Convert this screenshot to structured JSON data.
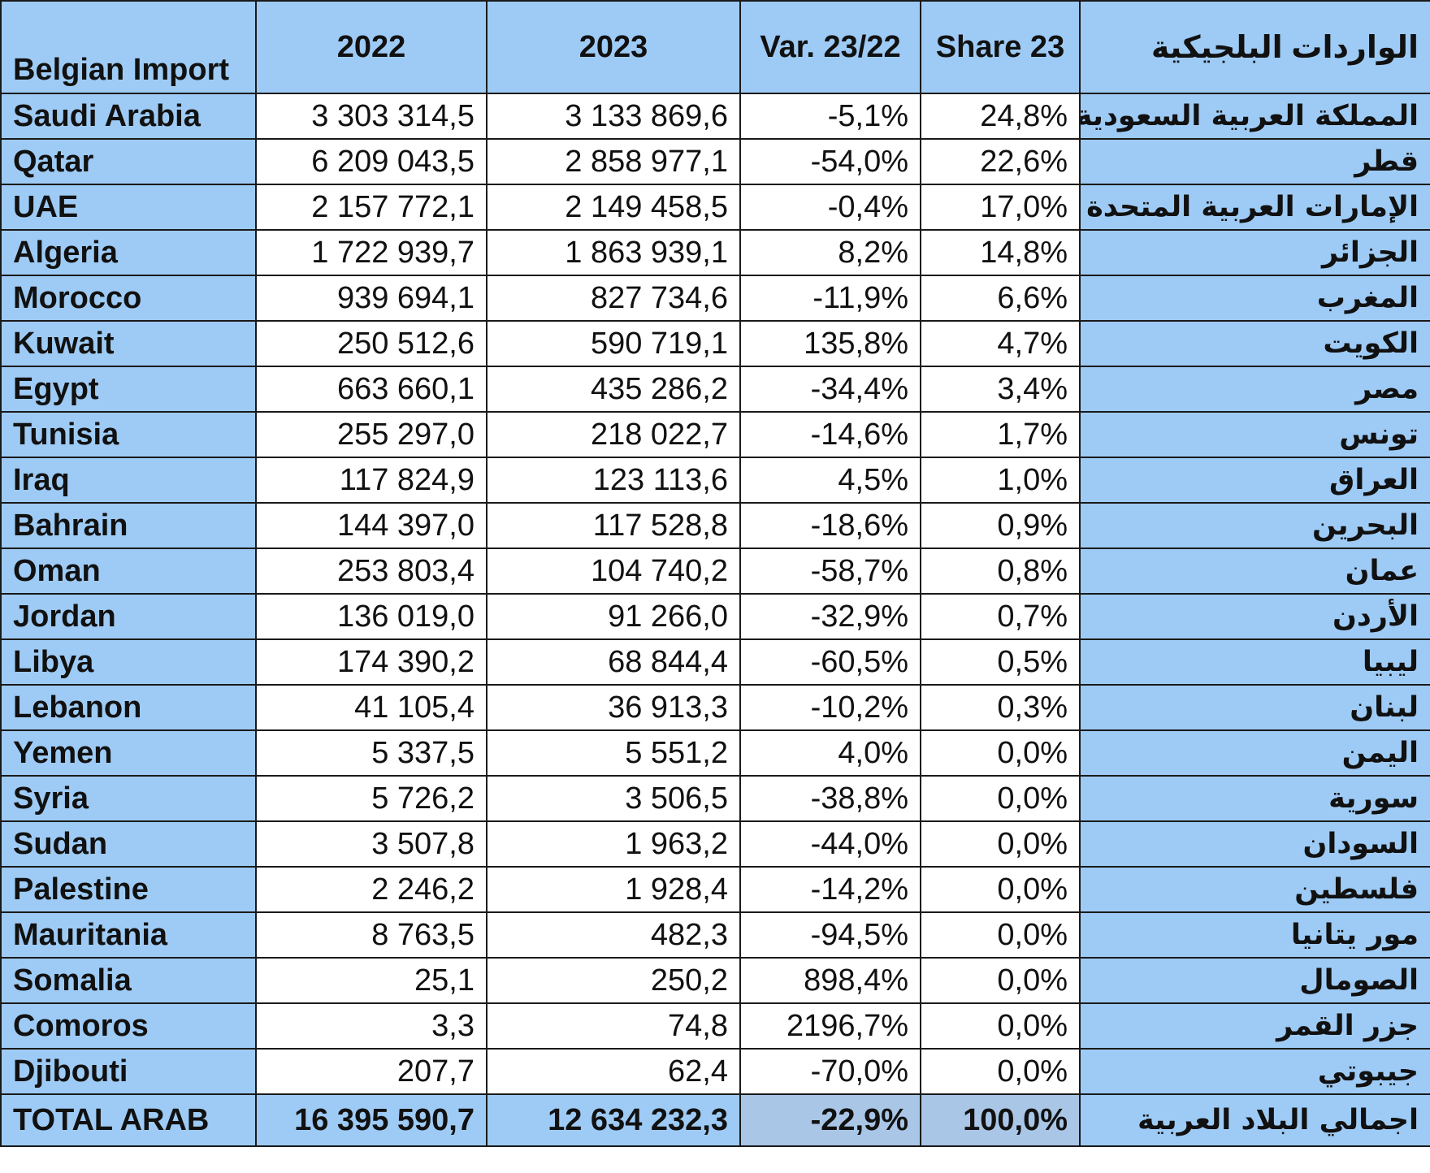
{
  "header": {
    "country_label": "Belgian Import",
    "col_2022": "2022",
    "col_2023": "2023",
    "col_var": "Var. 23/22",
    "col_share": "Share 23",
    "arabic_label": "الواردات البلجيكية"
  },
  "rows": [
    {
      "country": "Saudi Arabia",
      "v2022": "3 303 314,5",
      "v2023": "3 133 869,6",
      "var": "-5,1%",
      "share": "24,8%",
      "arabic": "المملكة العربية السعودية"
    },
    {
      "country": "Qatar",
      "v2022": "6 209 043,5",
      "v2023": "2 858 977,1",
      "var": "-54,0%",
      "share": "22,6%",
      "arabic": "قطر"
    },
    {
      "country": "UAE",
      "v2022": "2 157 772,1",
      "v2023": "2 149 458,5",
      "var": "-0,4%",
      "share": "17,0%",
      "arabic": "الإمارات العربية المتحدة"
    },
    {
      "country": "Algeria",
      "v2022": "1 722 939,7",
      "v2023": "1 863 939,1",
      "var": "8,2%",
      "share": "14,8%",
      "arabic": "الجزائر"
    },
    {
      "country": "Morocco",
      "v2022": "939 694,1",
      "v2023": "827 734,6",
      "var": "-11,9%",
      "share": "6,6%",
      "arabic": "المغرب"
    },
    {
      "country": "Kuwait",
      "v2022": "250 512,6",
      "v2023": "590 719,1",
      "var": "135,8%",
      "share": "4,7%",
      "arabic": "الكويت"
    },
    {
      "country": "Egypt",
      "v2022": "663 660,1",
      "v2023": "435 286,2",
      "var": "-34,4%",
      "share": "3,4%",
      "arabic": "مصر"
    },
    {
      "country": "Tunisia",
      "v2022": "255 297,0",
      "v2023": "218 022,7",
      "var": "-14,6%",
      "share": "1,7%",
      "arabic": "تونس"
    },
    {
      "country": "Iraq",
      "v2022": "117 824,9",
      "v2023": "123 113,6",
      "var": "4,5%",
      "share": "1,0%",
      "arabic": "العراق"
    },
    {
      "country": "Bahrain",
      "v2022": "144 397,0",
      "v2023": "117 528,8",
      "var": "-18,6%",
      "share": "0,9%",
      "arabic": "البحرين"
    },
    {
      "country": "Oman",
      "v2022": "253 803,4",
      "v2023": "104 740,2",
      "var": "-58,7%",
      "share": "0,8%",
      "arabic": "عمان"
    },
    {
      "country": "Jordan",
      "v2022": "136 019,0",
      "v2023": "91 266,0",
      "var": "-32,9%",
      "share": "0,7%",
      "arabic": "الأردن"
    },
    {
      "country": "Libya",
      "v2022": "174 390,2",
      "v2023": "68 844,4",
      "var": "-60,5%",
      "share": "0,5%",
      "arabic": "ليبيا"
    },
    {
      "country": "Lebanon",
      "v2022": "41 105,4",
      "v2023": "36 913,3",
      "var": "-10,2%",
      "share": "0,3%",
      "arabic": "لبنان"
    },
    {
      "country": "Yemen",
      "v2022": "5 337,5",
      "v2023": "5 551,2",
      "var": "4,0%",
      "share": "0,0%",
      "arabic": "اليمن"
    },
    {
      "country": "Syria",
      "v2022": "5 726,2",
      "v2023": "3 506,5",
      "var": "-38,8%",
      "share": "0,0%",
      "arabic": "سورية"
    },
    {
      "country": "Sudan",
      "v2022": "3 507,8",
      "v2023": "1 963,2",
      "var": "-44,0%",
      "share": "0,0%",
      "arabic": "السودان"
    },
    {
      "country": "Palestine",
      "v2022": "2 246,2",
      "v2023": "1 928,4",
      "var": "-14,2%",
      "share": "0,0%",
      "arabic": "فلسطين"
    },
    {
      "country": "Mauritania",
      "v2022": "8 763,5",
      "v2023": "482,3",
      "var": "-94,5%",
      "share": "0,0%",
      "arabic": "مور يتانيا"
    },
    {
      "country": "Somalia",
      "v2022": "25,1",
      "v2023": "250,2",
      "var": "898,4%",
      "share": "0,0%",
      "arabic": "الصومال"
    },
    {
      "country": "Comoros",
      "v2022": "3,3",
      "v2023": "74,8",
      "var": "2196,7%",
      "share": "0,0%",
      "arabic": "جزر القمر"
    },
    {
      "country": "Djibouti",
      "v2022": "207,7",
      "v2023": "62,4",
      "var": "-70,0%",
      "share": "0,0%",
      "arabic": "جيبوتي"
    }
  ],
  "total": {
    "country": "TOTAL ARAB",
    "v2022": "16 395 590,7",
    "v2023": "12 634 232,3",
    "var": "-22,9%",
    "share": "100,0%",
    "arabic": "اجمالي البلاد العربية"
  }
}
